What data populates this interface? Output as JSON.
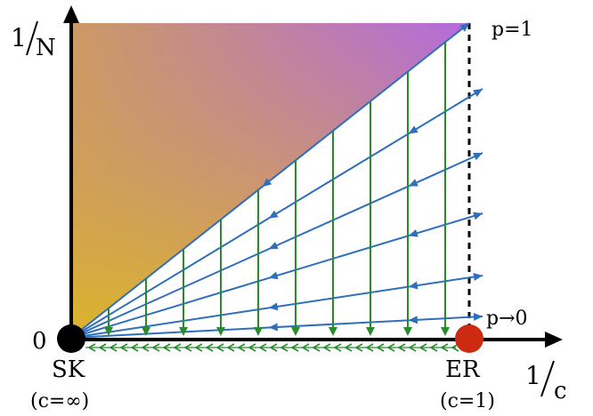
{
  "axes": {
    "y_label": {
      "numerator": "1",
      "denominator": "N"
    },
    "x_label": {
      "numerator": "1",
      "denominator": "c"
    },
    "origin_label": "0"
  },
  "points": {
    "sk": {
      "label": "SK",
      "sublabel": "(c=∞)",
      "color": "#000000"
    },
    "er": {
      "label": "ER",
      "sublabel": "(c=1)",
      "color": "#cc2a13"
    }
  },
  "lines": {
    "top_label": "p=1",
    "bottom_label": "p→0"
  },
  "colors": {
    "region_bottom_left": "#dcb42a",
    "region_top_left": "#cd9a63",
    "region_top_right": "#b46ade",
    "flow_blue": "#2e6fbd",
    "flow_green": "#2a8a2e",
    "dashed": "#000000"
  }
}
